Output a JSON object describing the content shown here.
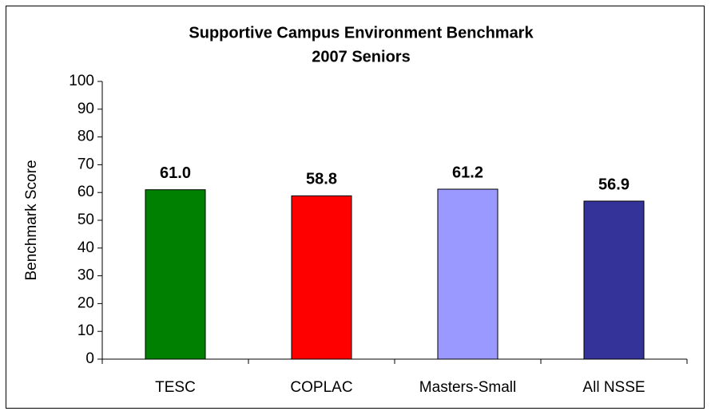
{
  "chart_data": {
    "type": "bar",
    "title": [
      "Supportive Campus Environment Benchmark",
      "2007 Seniors"
    ],
    "y_axis_label": "Benchmark Score",
    "categories": [
      "TESC",
      "COPLAC",
      "Masters-Small",
      "All NSSE"
    ],
    "values": [
      61.0,
      58.8,
      61.2,
      56.9
    ],
    "value_labels": [
      "61.0",
      "58.8",
      "61.2",
      "56.9"
    ],
    "colors": [
      "#008000",
      "#ff0000",
      "#9999ff",
      "#333399"
    ],
    "ylim": [
      0,
      100
    ],
    "yticks": [
      0,
      10,
      20,
      30,
      40,
      50,
      60,
      70,
      80,
      90,
      100
    ],
    "grid": false
  }
}
